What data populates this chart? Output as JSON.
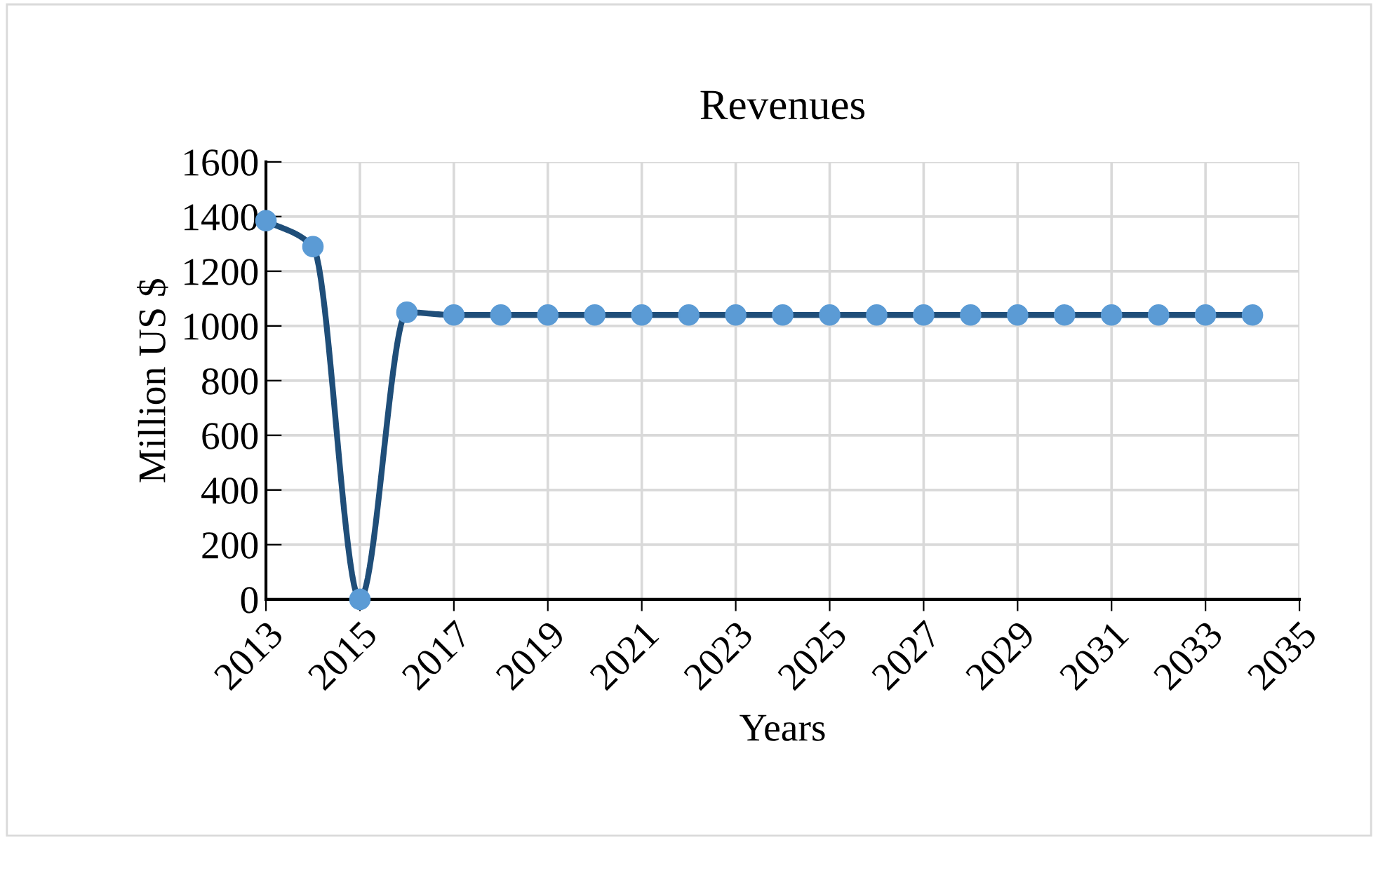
{
  "chart_data": {
    "type": "line",
    "title": "Revenues",
    "xlabel": "Years",
    "ylabel": "Million US $",
    "x": [
      2013,
      2014,
      2015,
      2016,
      2017,
      2018,
      2019,
      2020,
      2021,
      2022,
      2023,
      2024,
      2025,
      2026,
      2027,
      2028,
      2029,
      2030,
      2031,
      2032,
      2033,
      2034
    ],
    "series": [
      {
        "color": "#1f4e79",
        "colors": [
          "#5b9bd5",
          "#5b9bd5",
          "#5b9bd5",
          "#5b9bd5",
          "#5b9bd5",
          "#5b9bd5",
          "#5b9bd5",
          "#5b9bd5",
          "#5b9bd5",
          "#5b9bd5",
          "#5b9bd5",
          "#5b9bd5",
          "#5b9bd5",
          "#5b9bd5",
          "#5b9bd5",
          "#5b9bd5",
          "#5b9bd5",
          "#5b9bd5",
          "#5b9bd5",
          "#5b9bd5",
          "#5b9bd5",
          "#5b9bd5"
        ],
        "values": [
          1385,
          1290,
          0,
          1050,
          1040,
          1040,
          1040,
          1040,
          1040,
          1040,
          1040,
          1040,
          1040,
          1040,
          1040,
          1040,
          1040,
          1040,
          1040,
          1040,
          1040,
          1040
        ]
      }
    ],
    "xlim": [
      2013,
      2035
    ],
    "xticks": [
      2013,
      2015,
      2017,
      2019,
      2021,
      2023,
      2025,
      2027,
      2029,
      2031,
      2033,
      2035
    ],
    "ylim": [
      0,
      1600
    ],
    "yticks": [
      0,
      200,
      400,
      600,
      800,
      1000,
      1200,
      1400,
      1600
    ],
    "grid": true,
    "marker": "circle",
    "line_style": "solid"
  }
}
